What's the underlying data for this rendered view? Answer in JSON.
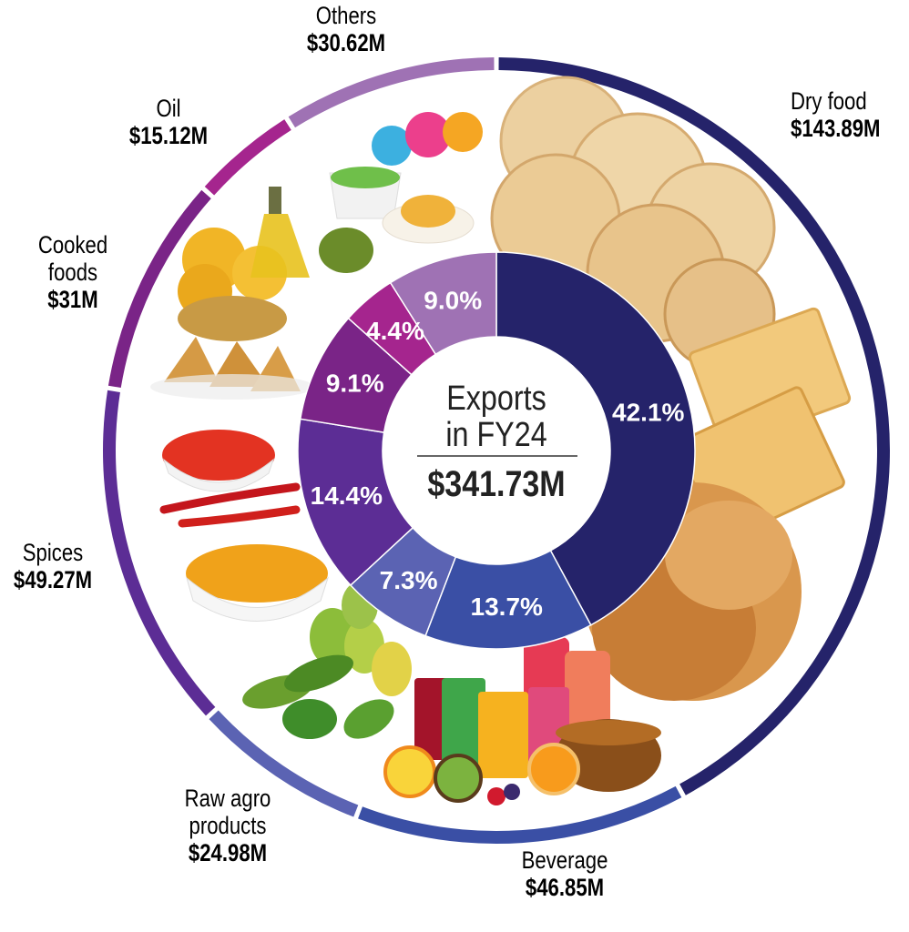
{
  "chart_data": {
    "type": "pie",
    "variant": "donut",
    "center": {
      "title_line1": "Exports",
      "title_line2": "in FY24",
      "total": "$341.73M"
    },
    "slices": [
      {
        "name": "Dry food",
        "value_label": "$143.89M",
        "value": 143.89,
        "percent": 42.1,
        "percent_label": "42.1%",
        "color": "#25236a"
      },
      {
        "name": "Beverage",
        "value_label": "$46.85M",
        "value": 46.85,
        "percent": 13.7,
        "percent_label": "13.7%",
        "color": "#3a4fa5"
      },
      {
        "name": "Raw agro products",
        "name_lines": [
          "Raw agro",
          "products"
        ],
        "value_label": "$24.98M",
        "value": 24.98,
        "percent": 7.3,
        "percent_label": "7.3%",
        "color": "#5b63b3"
      },
      {
        "name": "Spices",
        "value_label": "$49.27M",
        "value": 49.27,
        "percent": 14.4,
        "percent_label": "14.4%",
        "color": "#5c2d95"
      },
      {
        "name": "Cooked foods",
        "name_lines": [
          "Cooked",
          "foods"
        ],
        "value_label": "$31M",
        "value": 31,
        "percent": 9.1,
        "percent_label": "9.1%",
        "color": "#7a2487"
      },
      {
        "name": "Oil",
        "value_label": "$15.12M",
        "value": 15.12,
        "percent": 4.4,
        "percent_label": "4.4%",
        "color": "#a5258e"
      },
      {
        "name": "Others",
        "value_label": "$30.62M",
        "value": 30.62,
        "percent": 9.0,
        "percent_label": "9.0%",
        "color": "#9f72b4"
      }
    ]
  },
  "images": [
    {
      "icon": "biscuits-and-snack-mix-image",
      "for": "Dry food"
    },
    {
      "icon": "juices-and-tea-image",
      "for": "Beverage"
    },
    {
      "icon": "vegetables-and-mangoes-image",
      "for": "Raw agro products"
    },
    {
      "icon": "chili-and-turmeric-powder-image",
      "for": "Spices"
    },
    {
      "icon": "samosa-and-fried-snacks-image",
      "for": "Cooked foods"
    },
    {
      "icon": "oil-bottle-image",
      "for": "Oil"
    },
    {
      "icon": "lollipops-and-pudding-image",
      "for": "Others"
    }
  ]
}
